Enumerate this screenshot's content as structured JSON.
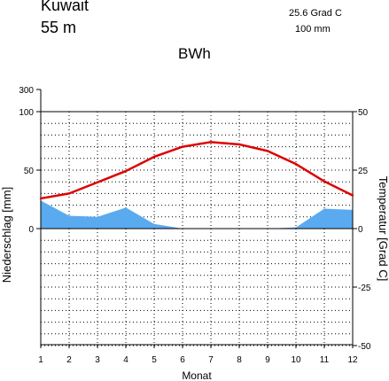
{
  "chart_data": {
    "type": "line",
    "station": "Kuwait",
    "elevation": "55  m",
    "climate_class": "BWh",
    "mean_temperature": "25.6 Grad C",
    "annual_precipitation": "100 mm",
    "xlabel": "Monat",
    "ylabel_left": "Niederschlag [mm]",
    "ylabel_right": "Temperatur [Grad C]",
    "x": [
      1,
      2,
      3,
      4,
      5,
      6,
      7,
      8,
      9,
      10,
      11,
      12
    ],
    "left_ticks": [
      "300",
      "100",
      "50",
      "0"
    ],
    "right_ticks": [
      "50",
      "25",
      "0",
      "-25",
      "-50"
    ],
    "xlim": [
      1,
      12
    ],
    "temperature_ylim": [
      -50,
      50
    ],
    "grid": true,
    "series": [
      {
        "name": "Temperatur",
        "color": "#dd0000",
        "axis": "right",
        "values": [
          12.9,
          15.0,
          19.8,
          24.6,
          30.7,
          35.0,
          37.0,
          36.0,
          33.2,
          27.6,
          20.2,
          14.2
        ]
      },
      {
        "name": "Niederschlag",
        "color": "#5aaaf0",
        "axis": "left",
        "values": [
          24,
          11,
          10,
          18,
          4,
          0,
          0,
          0,
          0,
          1,
          17,
          16
        ]
      }
    ]
  }
}
